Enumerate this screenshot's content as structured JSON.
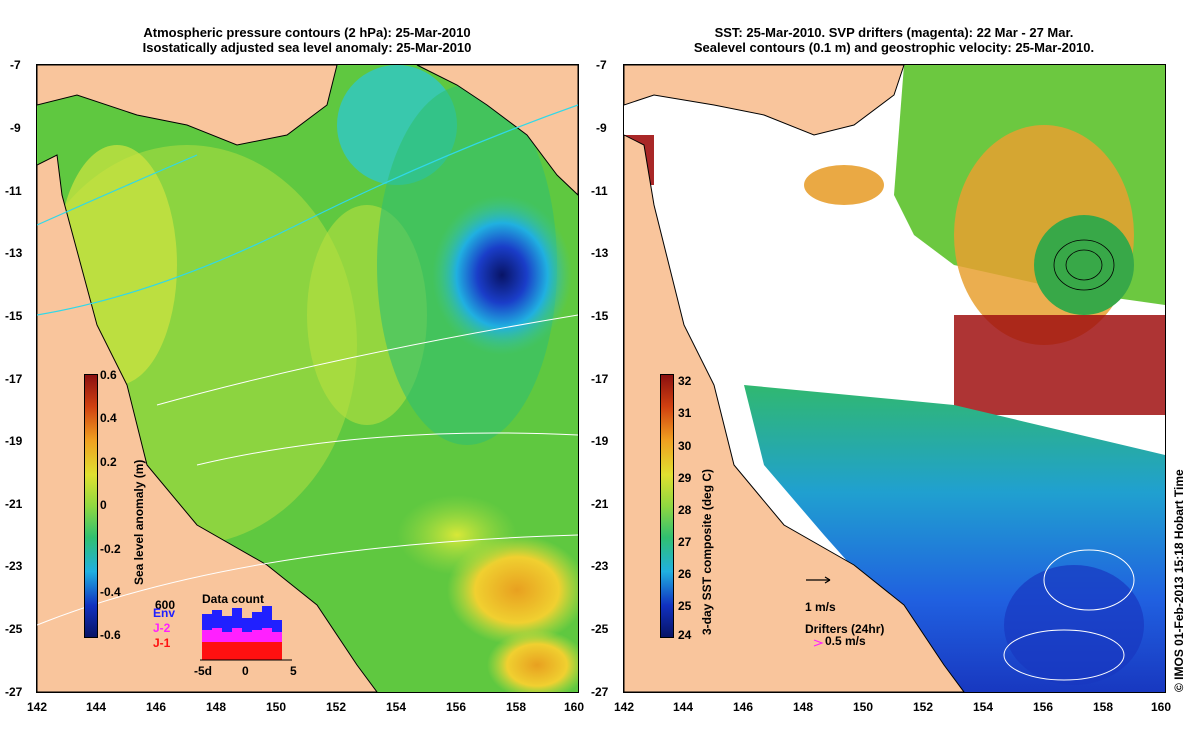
{
  "left_panel": {
    "title_line1": "Atmospheric pressure contours (2 hPa): 25-Mar-2010",
    "title_line2": "Isostatically adjusted sea level anomaly: 25-Mar-2010",
    "y_ticks": [
      "-7",
      "-9",
      "-11",
      "-13",
      "-15",
      "-17",
      "-19",
      "-21",
      "-23",
      "-25",
      "-27"
    ],
    "x_ticks": [
      "142",
      "144",
      "146",
      "148",
      "150",
      "152",
      "154",
      "156",
      "158",
      "160"
    ],
    "colorbar": {
      "label": "Sea level anomaly (m)",
      "ticks": [
        "0.6",
        "0.4",
        "0.2",
        "0",
        "-0.2",
        "-0.4",
        "-0.6"
      ],
      "range": [
        -0.6,
        0.6
      ]
    },
    "data_count": {
      "title": "Data count",
      "max_label": "600",
      "legend": [
        {
          "name": "Env",
          "color": "#2020ff"
        },
        {
          "name": "J-2",
          "color": "#ff20ff"
        },
        {
          "name": "J-1",
          "color": "#ff1010"
        }
      ],
      "x_labels": [
        "-5d",
        "0",
        "5"
      ]
    }
  },
  "right_panel": {
    "title_line1": "SST: 25-Mar-2010. SVP drifters (magenta): 22 Mar - 27 Mar.",
    "title_line2": "Sealevel contours (0.1 m) and geostrophic velocity: 25-Mar-2010.",
    "y_ticks": [
      "-7",
      "-9",
      "-11",
      "-13",
      "-15",
      "-17",
      "-19",
      "-21",
      "-23",
      "-25",
      "-27"
    ],
    "x_ticks": [
      "142",
      "144",
      "146",
      "148",
      "150",
      "152",
      "154",
      "156",
      "158",
      "160"
    ],
    "colorbar": {
      "label": "3-day SST composite (deg C)",
      "ticks": [
        "32",
        "31",
        "30",
        "29",
        "28",
        "27",
        "26",
        "25",
        "24"
      ],
      "range": [
        24,
        32
      ]
    },
    "velocity_scale_label": "1 m/s",
    "drifters_label": "Drifters (24hr)",
    "drifters_speed_label": "0.5 m/s"
  },
  "credit": "© IMOS 01-Feb-2013 15:18 Hobart Time",
  "colors": {
    "land": "#f9c59c",
    "sla_low": "#0a1570",
    "sla_high": "#a01010",
    "sst_cold": "#1e40e0",
    "sst_warm": "#e89020",
    "no_data": "#ffffff",
    "contour": "#ffffff",
    "pressure_contour": "#30d8e8"
  }
}
